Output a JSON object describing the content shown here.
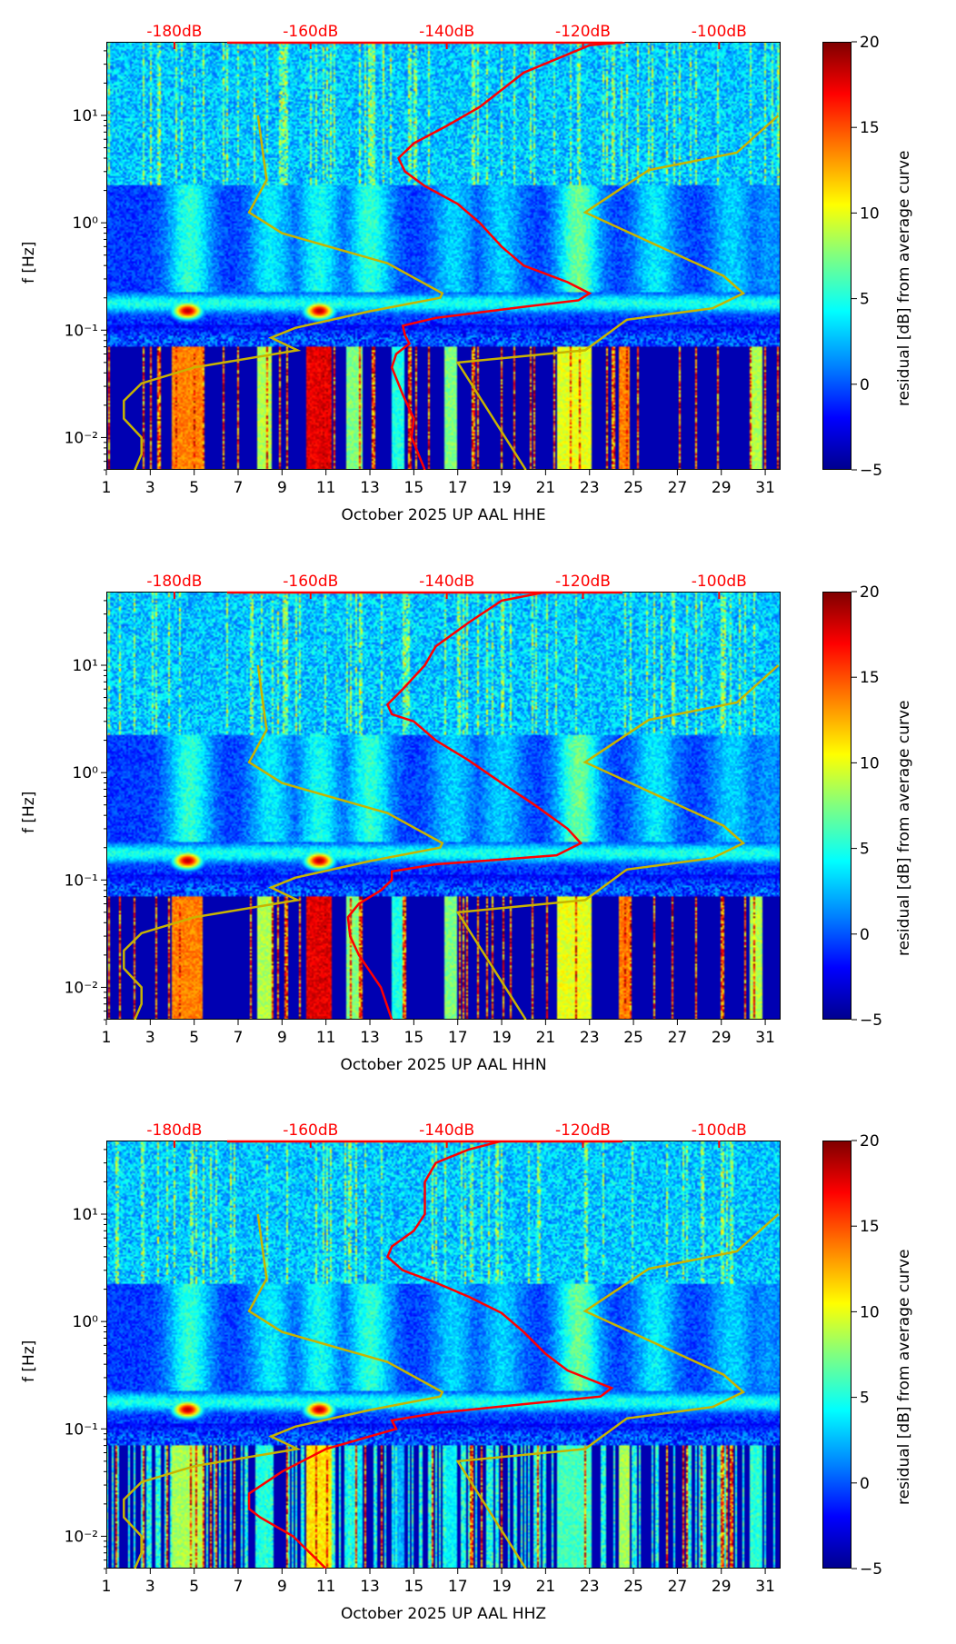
{
  "chart_data": {
    "type": "heatmap",
    "shared": {
      "ylabel": "f [Hz]",
      "yscale": "log",
      "ylim": [
        0.005,
        48.5
      ],
      "ytick_labels": [
        {
          "v": 10,
          "t": "10¹"
        },
        {
          "v": 1,
          "t": "10⁰"
        },
        {
          "v": 0.1,
          "t": "10⁻¹"
        },
        {
          "v": 0.01,
          "t": "10⁻²"
        }
      ],
      "xlim": [
        1,
        31.7
      ],
      "xtick_labels": [
        "1",
        "3",
        "5",
        "7",
        "9",
        "11",
        "13",
        "15",
        "17",
        "19",
        "21",
        "23",
        "25",
        "27",
        "29",
        "31"
      ],
      "top_axis_labels": [
        "-180dB",
        "-160dB",
        "-140dB",
        "-120dB",
        "-100dB"
      ],
      "top_axis_days": [
        4.1,
        10.3,
        16.5,
        22.7,
        28.9
      ],
      "colorbar": {
        "label": "residual [dB] from average curve",
        "range": [
          -5,
          20
        ],
        "tick_labels": [
          "20",
          "15",
          "10",
          "5",
          "0",
          "−5"
        ],
        "colormap": "jet"
      },
      "colors": {
        "red_curve": "#ff0000",
        "model_curves": "#c8b400",
        "top_axis": "#ff0000"
      },
      "model_low_curve": {
        "x_day": [
          7.9,
          8.3,
          7.5,
          9,
          13.8,
          16.3,
          16.2,
          13,
          9.6,
          8.5,
          9.7,
          5,
          2.6,
          1.8,
          1.8,
          2.6,
          2.6,
          2.3
        ],
        "f": [
          10,
          2.5,
          1.25,
          0.8,
          0.42,
          0.22,
          0.2,
          0.15,
          0.105,
          0.085,
          0.065,
          0.045,
          0.032,
          0.022,
          0.015,
          0.01,
          0.007,
          0.005
        ]
      },
      "model_high_curve": {
        "x_day": [
          31.6,
          29.7,
          25.7,
          22.8,
          29.1,
          30,
          28.6,
          24.7,
          22.8,
          17,
          20.1
        ],
        "f": [
          10,
          4.5,
          3.1,
          1.25,
          0.32,
          0.22,
          0.16,
          0.125,
          0.065,
          0.05,
          0.005
        ]
      }
    },
    "panels": [
      {
        "xlabel": "October 2025 UP AAL  HHE",
        "red_curve": {
          "x_day": [
            24.6,
            23,
            20,
            18,
            16.5,
            15,
            14.3,
            14.6,
            15.5,
            17,
            18,
            19,
            20,
            22,
            23,
            22.5,
            20,
            16,
            14.5,
            14.6,
            14.8,
            14.2,
            14.0,
            14.5,
            15,
            14.9,
            15.5
          ],
          "f": [
            48,
            45,
            25,
            12,
            8,
            5.5,
            4,
            3,
            2.2,
            1.5,
            1.0,
            0.6,
            0.4,
            0.28,
            0.22,
            0.19,
            0.165,
            0.13,
            0.11,
            0.09,
            0.075,
            0.06,
            0.045,
            0.025,
            0.015,
            0.01,
            0.005
          ]
        }
      },
      {
        "xlabel": "October 2025 UP AAL  HHN",
        "red_curve": {
          "x_day": [
            21,
            19,
            17.5,
            16,
            15.5,
            14.5,
            13.8,
            14,
            15,
            16,
            17.5,
            19,
            20.5,
            22,
            22.6,
            21.5,
            19,
            16,
            14,
            14,
            13.5,
            12.5,
            12,
            12.1,
            12.5,
            13.5,
            14
          ],
          "f": [
            48,
            40,
            25,
            15,
            10,
            6,
            4.3,
            3.5,
            3,
            2,
            1.3,
            0.8,
            0.5,
            0.3,
            0.22,
            0.17,
            0.155,
            0.14,
            0.12,
            0.1,
            0.08,
            0.06,
            0.045,
            0.03,
            0.02,
            0.01,
            0.005
          ]
        }
      },
      {
        "xlabel": "October 2025 UP AAL  HHZ",
        "red_curve": {
          "x_day": [
            19,
            17.5,
            16,
            15.5,
            15.5,
            15,
            14,
            13.8,
            14.5,
            16,
            17.5,
            19,
            20,
            21,
            22,
            24,
            23.5,
            20,
            16,
            14,
            14.2,
            13,
            11,
            9,
            7.5,
            7.5,
            8,
            9.5,
            11
          ],
          "f": [
            48,
            40,
            30,
            20,
            10,
            7,
            5,
            4,
            3,
            2.3,
            1.7,
            1.2,
            0.8,
            0.5,
            0.35,
            0.24,
            0.2,
            0.17,
            0.14,
            0.12,
            0.1,
            0.085,
            0.065,
            0.04,
            0.025,
            0.018,
            0.015,
            0.01,
            0.005
          ]
        }
      }
    ]
  }
}
